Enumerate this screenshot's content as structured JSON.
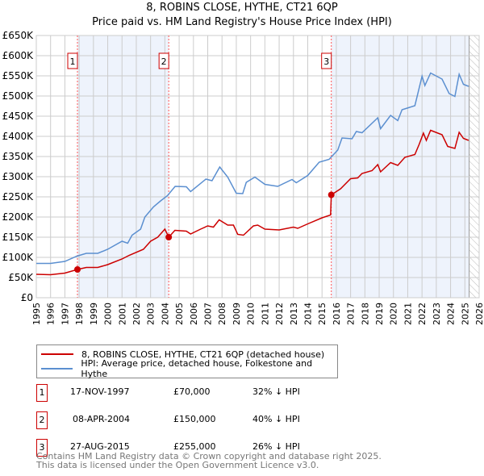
{
  "title": "8, ROBINS CLOSE, HYTHE, CT21 6QP",
  "subtitle": "Price paid vs. HM Land Registry's House Price Index (HPI)",
  "colors": {
    "property": "#cc0000",
    "hpi": "#5b8fd0",
    "shade": "#eef3fc"
  },
  "chart_data": {
    "type": "line",
    "xlim": [
      1995,
      2026
    ],
    "ylim": [
      0,
      650000
    ],
    "x_ticks": [
      1995,
      1996,
      1997,
      1998,
      1999,
      2000,
      2001,
      2002,
      2003,
      2004,
      2005,
      2006,
      2007,
      2008,
      2009,
      2010,
      2011,
      2012,
      2013,
      2014,
      2015,
      2016,
      2017,
      2018,
      2019,
      2020,
      2021,
      2022,
      2023,
      2024,
      2025,
      2026
    ],
    "y_ticks": [
      {
        "v": 0,
        "label": "£0"
      },
      {
        "v": 50000,
        "label": "£50K"
      },
      {
        "v": 100000,
        "label": "£100K"
      },
      {
        "v": 150000,
        "label": "£150K"
      },
      {
        "v": 200000,
        "label": "£200K"
      },
      {
        "v": 250000,
        "label": "£250K"
      },
      {
        "v": 300000,
        "label": "£300K"
      },
      {
        "v": 350000,
        "label": "£350K"
      },
      {
        "v": 400000,
        "label": "£400K"
      },
      {
        "v": 450000,
        "label": "£450K"
      },
      {
        "v": 500000,
        "label": "£500K"
      },
      {
        "v": 550000,
        "label": "£550K"
      },
      {
        "v": 600000,
        "label": "£600K"
      },
      {
        "v": 650000,
        "label": "£650K"
      }
    ],
    "grid": true,
    "forecast_start": 2025.3,
    "series": [
      {
        "name": "8, ROBINS CLOSE, HYTHE, CT21 6QP (detached house)",
        "color": "#cc0000",
        "points": [
          [
            1995,
            58000
          ],
          [
            1996,
            57000
          ],
          [
            1997,
            61000
          ],
          [
            1997.88,
            70000
          ],
          [
            1998.5,
            75000
          ],
          [
            1999.3,
            75000
          ],
          [
            2000,
            82000
          ],
          [
            2001,
            96000
          ],
          [
            2001.5,
            105000
          ],
          [
            2002.5,
            120000
          ],
          [
            2003,
            140000
          ],
          [
            2003.5,
            150000
          ],
          [
            2004.0,
            170000
          ],
          [
            2004.27,
            150000
          ],
          [
            2004.7,
            167000
          ],
          [
            2005.5,
            165000
          ],
          [
            2005.8,
            158000
          ],
          [
            2006.5,
            170000
          ],
          [
            2007,
            178000
          ],
          [
            2007.4,
            175000
          ],
          [
            2007.8,
            193000
          ],
          [
            2008.4,
            180000
          ],
          [
            2008.8,
            180000
          ],
          [
            2009.1,
            157000
          ],
          [
            2009.5,
            155000
          ],
          [
            2010.2,
            178000
          ],
          [
            2010.5,
            180000
          ],
          [
            2011,
            170000
          ],
          [
            2012,
            168000
          ],
          [
            2013,
            175000
          ],
          [
            2013.3,
            172000
          ],
          [
            2014,
            183000
          ],
          [
            2015,
            198000
          ],
          [
            2015.6,
            205000
          ],
          [
            2015.65,
            255000
          ],
          [
            2016.3,
            270000
          ],
          [
            2017,
            295000
          ],
          [
            2017.5,
            297000
          ],
          [
            2017.8,
            308000
          ],
          [
            2018.5,
            315000
          ],
          [
            2018.9,
            330000
          ],
          [
            2019.1,
            312000
          ],
          [
            2019.8,
            335000
          ],
          [
            2020.3,
            328000
          ],
          [
            2020.8,
            348000
          ],
          [
            2021.5,
            355000
          ],
          [
            2021.8,
            380000
          ],
          [
            2022.1,
            408000
          ],
          [
            2022.3,
            390000
          ],
          [
            2022.6,
            415000
          ],
          [
            2023.4,
            404000
          ],
          [
            2023.8,
            375000
          ],
          [
            2024.3,
            370000
          ],
          [
            2024.6,
            410000
          ],
          [
            2024.9,
            395000
          ],
          [
            2025.26,
            390000
          ]
        ]
      },
      {
        "name": "HPI: Average price, detached house, Folkestone and Hythe",
        "color": "#5b8fd0",
        "points": [
          [
            1995,
            85000
          ],
          [
            1996,
            85000
          ],
          [
            1997,
            90000
          ],
          [
            1997.84,
            103000
          ],
          [
            1998.5,
            110000
          ],
          [
            1999.3,
            110000
          ],
          [
            2000,
            120000
          ],
          [
            2001,
            140000
          ],
          [
            2001.4,
            135000
          ],
          [
            2001.7,
            155000
          ],
          [
            2002.3,
            170000
          ],
          [
            2002.6,
            200000
          ],
          [
            2003.2,
            225000
          ],
          [
            2003.7,
            240000
          ],
          [
            2004.18,
            253000
          ],
          [
            2004.72,
            276000
          ],
          [
            2005.5,
            275000
          ],
          [
            2005.8,
            263000
          ],
          [
            2006.87,
            294000
          ],
          [
            2007.3,
            290000
          ],
          [
            2007.84,
            324000
          ],
          [
            2008.4,
            299000
          ],
          [
            2009.0,
            259000
          ],
          [
            2009.45,
            258000
          ],
          [
            2009.7,
            286000
          ],
          [
            2010.3,
            299000
          ],
          [
            2011,
            281000
          ],
          [
            2011.9,
            276000
          ],
          [
            2012.9,
            293000
          ],
          [
            2013.2,
            285000
          ],
          [
            2014,
            303000
          ],
          [
            2014.8,
            336000
          ],
          [
            2015.5,
            343000
          ],
          [
            2016.1,
            366000
          ],
          [
            2016.4,
            396000
          ],
          [
            2017.1,
            394000
          ],
          [
            2017.4,
            412000
          ],
          [
            2017.8,
            409000
          ],
          [
            2018.9,
            446000
          ],
          [
            2019.1,
            419000
          ],
          [
            2019.8,
            452000
          ],
          [
            2020.3,
            439000
          ],
          [
            2020.6,
            466000
          ],
          [
            2021.5,
            476000
          ],
          [
            2022.0,
            549000
          ],
          [
            2022.2,
            526000
          ],
          [
            2022.6,
            557000
          ],
          [
            2023.4,
            542000
          ],
          [
            2023.9,
            506000
          ],
          [
            2024.3,
            499000
          ],
          [
            2024.6,
            554000
          ],
          [
            2024.9,
            529000
          ],
          [
            2025.26,
            524000
          ]
        ]
      }
    ],
    "sales": [
      {
        "id": "1",
        "x": 1997.88,
        "price": 70000
      },
      {
        "id": "2",
        "x": 2004.27,
        "price": 150000
      },
      {
        "id": "3",
        "x": 2015.65,
        "price": 255000
      }
    ]
  },
  "legend": {
    "property": "8, ROBINS CLOSE, HYTHE, CT21 6QP (detached house)",
    "hpi": "HPI: Average price, detached house, Folkestone and Hythe"
  },
  "transactions": [
    {
      "id": "1",
      "date": "17-NOV-1997",
      "price": "£70,000",
      "delta": "32% ↓ HPI"
    },
    {
      "id": "2",
      "date": "08-APR-2004",
      "price": "£150,000",
      "delta": "40% ↓ HPI"
    },
    {
      "id": "3",
      "date": "27-AUG-2015",
      "price": "£255,000",
      "delta": "26% ↓ HPI"
    }
  ],
  "footer": {
    "line1": "Contains HM Land Registry data © Crown copyright and database right 2025.",
    "line2": "This data is licensed under the Open Government Licence v3.0."
  }
}
